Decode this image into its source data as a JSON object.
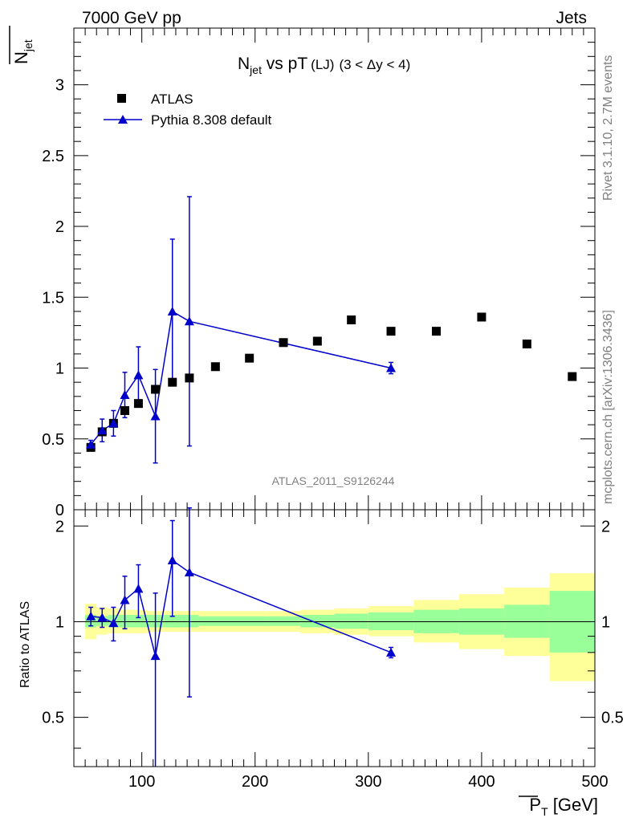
{
  "header": {
    "left": "7000 GeV pp",
    "right": "Jets"
  },
  "title": {
    "main": "N",
    "sub": "jet",
    "rest": " vs pT",
    "small": "(LJ)",
    "cut": "(3 < Δy < 4)"
  },
  "ylabel": {
    "main": "N",
    "sub": "jet"
  },
  "ratio_ylabel": "Ratio to ATLAS",
  "xlabel": {
    "main": "P",
    "sub": "T",
    "unit": " [GeV]"
  },
  "analysis_label": "ATLAS_2011_S9126244",
  "side_text": {
    "rivet": "Rivet 3.1.10,  2.7M events",
    "url": "mcplots.cern.ch [arXiv:1306.3436]"
  },
  "legend": {
    "data": "ATLAS",
    "mc": "Pythia 8.308 default"
  },
  "colors": {
    "mc": "#0000cc",
    "data": "#000000",
    "band_inner": "#99ff99",
    "band_outer": "#ffff99"
  },
  "chart_data": [
    {
      "type": "scatter",
      "panel": "main",
      "xlim": [
        40,
        500
      ],
      "ylim": [
        0,
        3.4
      ],
      "xticks": [
        100,
        200,
        300,
        400,
        500
      ],
      "yticks": [
        0.5,
        1,
        1.5,
        2,
        2.5,
        3
      ],
      "ytick_labels": [
        "0.5",
        "1",
        "1.5",
        "2",
        "2.5",
        "3"
      ],
      "series": [
        {
          "name": "ATLAS",
          "marker": "square",
          "x": [
            55,
            65,
            75,
            85,
            97,
            112,
            127,
            142,
            165,
            195,
            225,
            255,
            285,
            320,
            360,
            400,
            440,
            480
          ],
          "y": [
            0.44,
            0.55,
            0.61,
            0.7,
            0.75,
            0.85,
            0.9,
            0.93,
            1.01,
            1.07,
            1.18,
            1.19,
            1.34,
            1.26,
            1.26,
            1.36,
            1.17,
            0.94
          ]
        },
        {
          "name": "Pythia 8.308 default",
          "marker": "triangle",
          "x": [
            55,
            65,
            75,
            85,
            97,
            112,
            127,
            142,
            320
          ],
          "y": [
            0.46,
            0.56,
            0.61,
            0.81,
            0.95,
            0.66,
            1.4,
            1.33,
            1.0
          ],
          "yerr": [
            0.03,
            0.08,
            0.09,
            0.16,
            0.2,
            0.33,
            0.51,
            0.88,
            0.04
          ]
        }
      ]
    },
    {
      "type": "line",
      "panel": "ratio",
      "xlim": [
        40,
        500
      ],
      "ylim": [
        0.35,
        2.25
      ],
      "xticks": [
        100,
        200,
        300,
        400,
        500
      ],
      "xtick_labels": [
        "100",
        "200",
        "300",
        "400",
        "500"
      ],
      "yticks": [
        0.5,
        1,
        2
      ],
      "ytick_labels": [
        "0.5",
        "1",
        "2"
      ],
      "bands": {
        "edges": [
          50,
          60,
          70,
          80,
          90,
          105,
          120,
          135,
          150,
          180,
          210,
          240,
          270,
          300,
          340,
          380,
          420,
          460,
          500
        ],
        "inner": [
          [
            0.96,
            1.05
          ],
          [
            0.97,
            1.04
          ],
          [
            0.96,
            1.05
          ],
          [
            0.96,
            1.05
          ],
          [
            0.96,
            1.05
          ],
          [
            0.96,
            1.05
          ],
          [
            0.96,
            1.05
          ],
          [
            0.96,
            1.05
          ],
          [
            0.97,
            1.04
          ],
          [
            0.97,
            1.04
          ],
          [
            0.97,
            1.04
          ],
          [
            0.96,
            1.05
          ],
          [
            0.95,
            1.06
          ],
          [
            0.94,
            1.07
          ],
          [
            0.92,
            1.09
          ],
          [
            0.91,
            1.1
          ],
          [
            0.89,
            1.13
          ],
          [
            0.8,
            1.25
          ],
          [
            0.55,
            1.65
          ]
        ],
        "outer": [
          [
            0.88,
            1.14
          ],
          [
            0.91,
            1.11
          ],
          [
            0.92,
            1.1
          ],
          [
            0.92,
            1.09
          ],
          [
            0.92,
            1.09
          ],
          [
            0.93,
            1.08
          ],
          [
            0.93,
            1.08
          ],
          [
            0.93,
            1.08
          ],
          [
            0.93,
            1.08
          ],
          [
            0.93,
            1.08
          ],
          [
            0.93,
            1.08
          ],
          [
            0.92,
            1.09
          ],
          [
            0.91,
            1.1
          ],
          [
            0.9,
            1.12
          ],
          [
            0.86,
            1.17
          ],
          [
            0.82,
            1.22
          ],
          [
            0.78,
            1.28
          ],
          [
            0.65,
            1.42
          ],
          [
            0.4,
            2.05
          ]
        ]
      },
      "series": [
        {
          "name": "Pythia 8.308 default",
          "x": [
            55,
            65,
            75,
            85,
            97,
            112,
            127,
            142,
            320
          ],
          "y": [
            1.04,
            1.03,
            0.99,
            1.17,
            1.27,
            0.78,
            1.56,
            1.43,
            0.8
          ],
          "yerr": [
            0.07,
            0.07,
            0.12,
            0.22,
            0.24,
            0.45,
            0.52,
            0.85,
            0.03
          ]
        }
      ]
    }
  ]
}
